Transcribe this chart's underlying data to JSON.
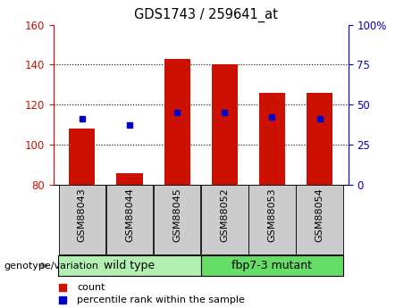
{
  "title": "GDS1743 / 259641_at",
  "samples": [
    "GSM88043",
    "GSM88044",
    "GSM88045",
    "GSM88052",
    "GSM88053",
    "GSM88054"
  ],
  "count_values": [
    108,
    86,
    143,
    140,
    126,
    126
  ],
  "percentile_values": [
    113,
    110,
    116,
    116,
    114,
    113
  ],
  "ymin": 80,
  "ymax": 160,
  "y2min": 0,
  "y2max": 100,
  "yticks": [
    80,
    100,
    120,
    140,
    160
  ],
  "y2ticks": [
    0,
    25,
    50,
    75,
    100
  ],
  "y2ticklabels": [
    "0",
    "25",
    "50",
    "75",
    "100%"
  ],
  "groups": [
    {
      "label": "wild type",
      "samples": [
        0,
        1,
        2
      ],
      "color": "#b2f0b2"
    },
    {
      "label": "fbp7-3 mutant",
      "samples": [
        3,
        4,
        5
      ],
      "color": "#66dd66"
    }
  ],
  "group_label": "genotype/variation",
  "bar_color": "#cc1100",
  "dot_color": "#0000cc",
  "bar_width": 0.55,
  "legend_count_label": "count",
  "legend_percentile_label": "percentile rank within the sample",
  "left_axis_color": "#cc1100",
  "right_axis_color": "#0000cc",
  "tick_label_bg": "#cccccc",
  "grid_lines": [
    100,
    120,
    140
  ]
}
